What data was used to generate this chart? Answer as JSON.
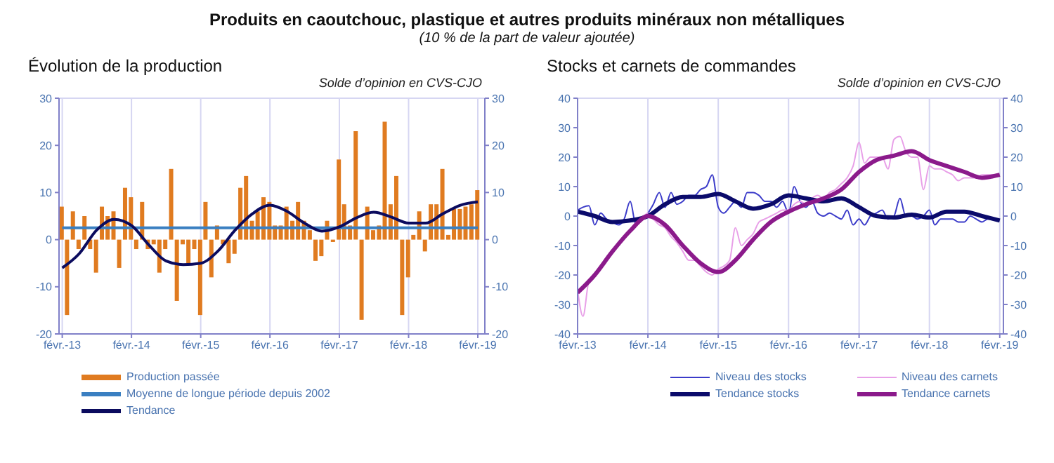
{
  "chart_data": [
    {
      "type": "bar",
      "title": "Évolution de la production",
      "subtitle": "Solde d’opinion en CVS-CJO",
      "annotations": [
        "Produits en caoutchouc, plastique et autres produits minéraux non métalliques",
        "(10 % de la part de valeur ajoutée)"
      ],
      "x": [
        "2013-02",
        "2013-03",
        "2013-04",
        "2013-05",
        "2013-06",
        "2013-07",
        "2013-08",
        "2013-09",
        "2013-10",
        "2013-11",
        "2013-12",
        "2014-01",
        "2014-02",
        "2014-03",
        "2014-04",
        "2014-05",
        "2014-06",
        "2014-07",
        "2014-08",
        "2014-09",
        "2014-10",
        "2014-11",
        "2014-12",
        "2015-01",
        "2015-02",
        "2015-03",
        "2015-04",
        "2015-05",
        "2015-06",
        "2015-07",
        "2015-08",
        "2015-09",
        "2015-10",
        "2015-11",
        "2015-12",
        "2016-01",
        "2016-02",
        "2016-03",
        "2016-04",
        "2016-05",
        "2016-06",
        "2016-07",
        "2016-08",
        "2016-09",
        "2016-10",
        "2016-11",
        "2016-12",
        "2017-01",
        "2017-02",
        "2017-03",
        "2017-04",
        "2017-05",
        "2017-06",
        "2017-07",
        "2017-08",
        "2017-09",
        "2017-10",
        "2017-11",
        "2017-12",
        "2018-01",
        "2018-02",
        "2018-03",
        "2018-04",
        "2018-05",
        "2018-06",
        "2018-07",
        "2018-08",
        "2018-09",
        "2018-10",
        "2018-11",
        "2018-12",
        "2019-01",
        "2019-02"
      ],
      "series": [
        {
          "name": "Production passée",
          "type": "bar",
          "color": "#e07b20",
          "values": [
            7,
            -16,
            6,
            -2,
            5,
            -2,
            -7,
            7,
            5,
            6,
            -6,
            11,
            9,
            -2,
            8,
            -2,
            -1,
            -7,
            -2,
            15,
            -13,
            -1,
            -5,
            -2,
            -16,
            8,
            -8,
            3,
            -1,
            -5,
            -3,
            11,
            13.5,
            4,
            6,
            9,
            8,
            3,
            3,
            7,
            4,
            8,
            4,
            2,
            -4.5,
            -3.5,
            4,
            -0.5,
            17,
            7.5,
            3,
            23,
            -17,
            7,
            2,
            3,
            25,
            7.5,
            13.5,
            -16,
            -8,
            1,
            6,
            -2.5,
            7.5,
            7.5,
            15,
            1,
            6.5,
            6.5,
            7,
            7.5,
            10.5
          ]
        },
        {
          "name": "Moyenne de longue période depuis 2002",
          "type": "line",
          "color": "#3a7fc1",
          "x": [
            "2013-02",
            "2019-02"
          ],
          "values": [
            2.5,
            2.5
          ]
        },
        {
          "name": "Tendance",
          "type": "line",
          "color": "#0b0b5e",
          "x": [
            "2013-02",
            "2013-05",
            "2013-08",
            "2013-11",
            "2014-02",
            "2014-05",
            "2014-08",
            "2014-11",
            "2015-02",
            "2015-05",
            "2015-08",
            "2015-11",
            "2016-02",
            "2016-05",
            "2016-08",
            "2016-11",
            "2017-02",
            "2017-05",
            "2017-08",
            "2017-11",
            "2018-02",
            "2018-05",
            "2018-08",
            "2018-11",
            "2019-02"
          ],
          "values": [
            -6,
            -3,
            2,
            4.3,
            3,
            -1,
            -4.5,
            -5.3,
            -5,
            -2.5,
            2,
            5.5,
            7.3,
            6,
            3.5,
            1.8,
            2.7,
            4.6,
            5.8,
            4.8,
            3.5,
            3.5,
            5.5,
            7.3,
            8
          ]
        }
      ],
      "xlim": [
        "2013-01-15",
        "2019-03-10"
      ],
      "xticks": [
        {
          "value": "2013-02",
          "label": "févr.-13"
        },
        {
          "value": "2014-02",
          "label": "févr.-14"
        },
        {
          "value": "2015-02",
          "label": "févr.-15"
        },
        {
          "value": "2016-02",
          "label": "févr.-16"
        },
        {
          "value": "2017-02",
          "label": "févr.-17"
        },
        {
          "value": "2018-02",
          "label": "févr.-18"
        },
        {
          "value": "2019-02",
          "label": "févr.-19"
        }
      ],
      "ylim": [
        -20,
        30
      ],
      "yticks": [
        -20,
        -10,
        0,
        10,
        20,
        30
      ],
      "y2lim": [
        -20,
        30
      ],
      "y2ticks": [
        -20,
        -10,
        0,
        10,
        20,
        30
      ],
      "grid": true,
      "legend": "bottom"
    },
    {
      "type": "line",
      "title": "Stocks et carnets de commandes",
      "subtitle": "Solde d’opinion en CVS-CJO",
      "x": [
        "2013-02",
        "2013-03",
        "2013-04",
        "2013-05",
        "2013-06",
        "2013-07",
        "2013-08",
        "2013-09",
        "2013-10",
        "2013-11",
        "2013-12",
        "2014-01",
        "2014-02",
        "2014-03",
        "2014-04",
        "2014-05",
        "2014-06",
        "2014-07",
        "2014-08",
        "2014-09",
        "2014-10",
        "2014-11",
        "2014-12",
        "2015-01",
        "2015-02",
        "2015-03",
        "2015-04",
        "2015-05",
        "2015-06",
        "2015-07",
        "2015-08",
        "2015-09",
        "2015-10",
        "2015-11",
        "2015-12",
        "2016-01",
        "2016-02",
        "2016-03",
        "2016-04",
        "2016-05",
        "2016-06",
        "2016-07",
        "2016-08",
        "2016-09",
        "2016-10",
        "2016-11",
        "2016-12",
        "2017-01",
        "2017-02",
        "2017-03",
        "2017-04",
        "2017-05",
        "2017-06",
        "2017-07",
        "2017-08",
        "2017-09",
        "2017-10",
        "2017-11",
        "2017-12",
        "2018-01",
        "2018-02",
        "2018-03",
        "2018-04",
        "2018-05",
        "2018-06",
        "2018-07",
        "2018-08",
        "2018-09",
        "2018-10",
        "2018-11",
        "2018-12",
        "2019-01"
      ],
      "series": [
        {
          "name": "Niveau des stocks",
          "color": "#3b3bc9",
          "values": [
            2,
            3,
            3.5,
            -3,
            1,
            -1,
            -2,
            -3,
            -1,
            5,
            -3,
            -1,
            1,
            4,
            8,
            3,
            8,
            4,
            5,
            7,
            7,
            9,
            10,
            14,
            3,
            1,
            3,
            5,
            3,
            8,
            8,
            7,
            5,
            5,
            3,
            5,
            1,
            10,
            5,
            3,
            5,
            1,
            0,
            1,
            0,
            -1,
            2,
            -3,
            -1,
            -3,
            0,
            1,
            2,
            -1,
            0,
            6,
            0,
            0,
            -1,
            0,
            2,
            -3,
            -1,
            -1,
            -1,
            -2,
            -2,
            0,
            -1,
            -2,
            -1,
            -1
          ]
        },
        {
          "name": "Niveau des carnets",
          "color": "#e8a0e8",
          "values": [
            -25,
            -34,
            -22,
            -20,
            -17,
            -14,
            -12,
            -9,
            -7,
            -5,
            -3,
            -1,
            1,
            -1,
            -3,
            -4,
            -7,
            -9,
            -12,
            -15,
            -15,
            -17,
            -19,
            -20,
            -18,
            -17,
            -15,
            -4,
            -10,
            -8,
            -6,
            -2,
            -1,
            0,
            1,
            2,
            2,
            4,
            5,
            4,
            6,
            7,
            6,
            8,
            9,
            11,
            13,
            17,
            25,
            18,
            20,
            20,
            20,
            16,
            26,
            27,
            22,
            20,
            20,
            9,
            17,
            16,
            16,
            15,
            14,
            12,
            13,
            13,
            13,
            14,
            14,
            14
          ]
        },
        {
          "name": "Tendance stocks",
          "color": "#0b0b6b",
          "x": [
            "2013-02",
            "2013-05",
            "2013-08",
            "2013-11",
            "2014-02",
            "2014-05",
            "2014-08",
            "2014-11",
            "2015-02",
            "2015-05",
            "2015-08",
            "2015-11",
            "2016-02",
            "2016-05",
            "2016-08",
            "2016-11",
            "2017-02",
            "2017-05",
            "2017-08",
            "2017-11",
            "2018-02",
            "2018-05",
            "2018-08",
            "2018-11",
            "2019-02"
          ],
          "values": [
            1.5,
            0,
            -2,
            -1.5,
            0,
            4,
            6.5,
            6.5,
            7.5,
            5,
            2.5,
            4,
            7,
            6,
            5,
            6,
            3,
            0,
            -0.5,
            0.5,
            -0.5,
            1.5,
            1.5,
            0,
            -1.5
          ]
        },
        {
          "name": "Tendance carnets",
          "color": "#8b1a8b",
          "x": [
            "2013-02",
            "2013-05",
            "2013-08",
            "2013-11",
            "2014-02",
            "2014-05",
            "2014-08",
            "2014-11",
            "2015-02",
            "2015-05",
            "2015-08",
            "2015-11",
            "2016-02",
            "2016-05",
            "2016-08",
            "2016-11",
            "2017-02",
            "2017-05",
            "2017-08",
            "2017-11",
            "2018-02",
            "2018-05",
            "2018-08",
            "2018-11",
            "2019-02"
          ],
          "values": [
            -26,
            -20,
            -12,
            -5,
            0,
            -3,
            -10,
            -16,
            -19,
            -15,
            -8,
            -2,
            1.5,
            4,
            6,
            9,
            15,
            19,
            20.5,
            22,
            19,
            17,
            15,
            13,
            14
          ]
        }
      ],
      "xlim": [
        "2013-02-01",
        "2019-02-20"
      ],
      "xticks": [
        {
          "value": "2013-02",
          "label": "févr.-13"
        },
        {
          "value": "2014-02",
          "label": "févr.-14"
        },
        {
          "value": "2015-02",
          "label": "févr.-15"
        },
        {
          "value": "2016-02",
          "label": "févr.-16"
        },
        {
          "value": "2017-02",
          "label": "févr.-17"
        },
        {
          "value": "2018-02",
          "label": "févr.-18"
        },
        {
          "value": "2019-02",
          "label": "févr.-19"
        }
      ],
      "ylim": [
        -40,
        40
      ],
      "yticks": [
        -40,
        -30,
        -20,
        -10,
        0,
        10,
        20,
        30,
        40
      ],
      "y2lim": [
        -40,
        40
      ],
      "y2ticks": [
        -40,
        -30,
        -20,
        -10,
        0,
        10,
        20,
        30,
        40
      ],
      "grid": true,
      "legend": "bottom"
    }
  ]
}
